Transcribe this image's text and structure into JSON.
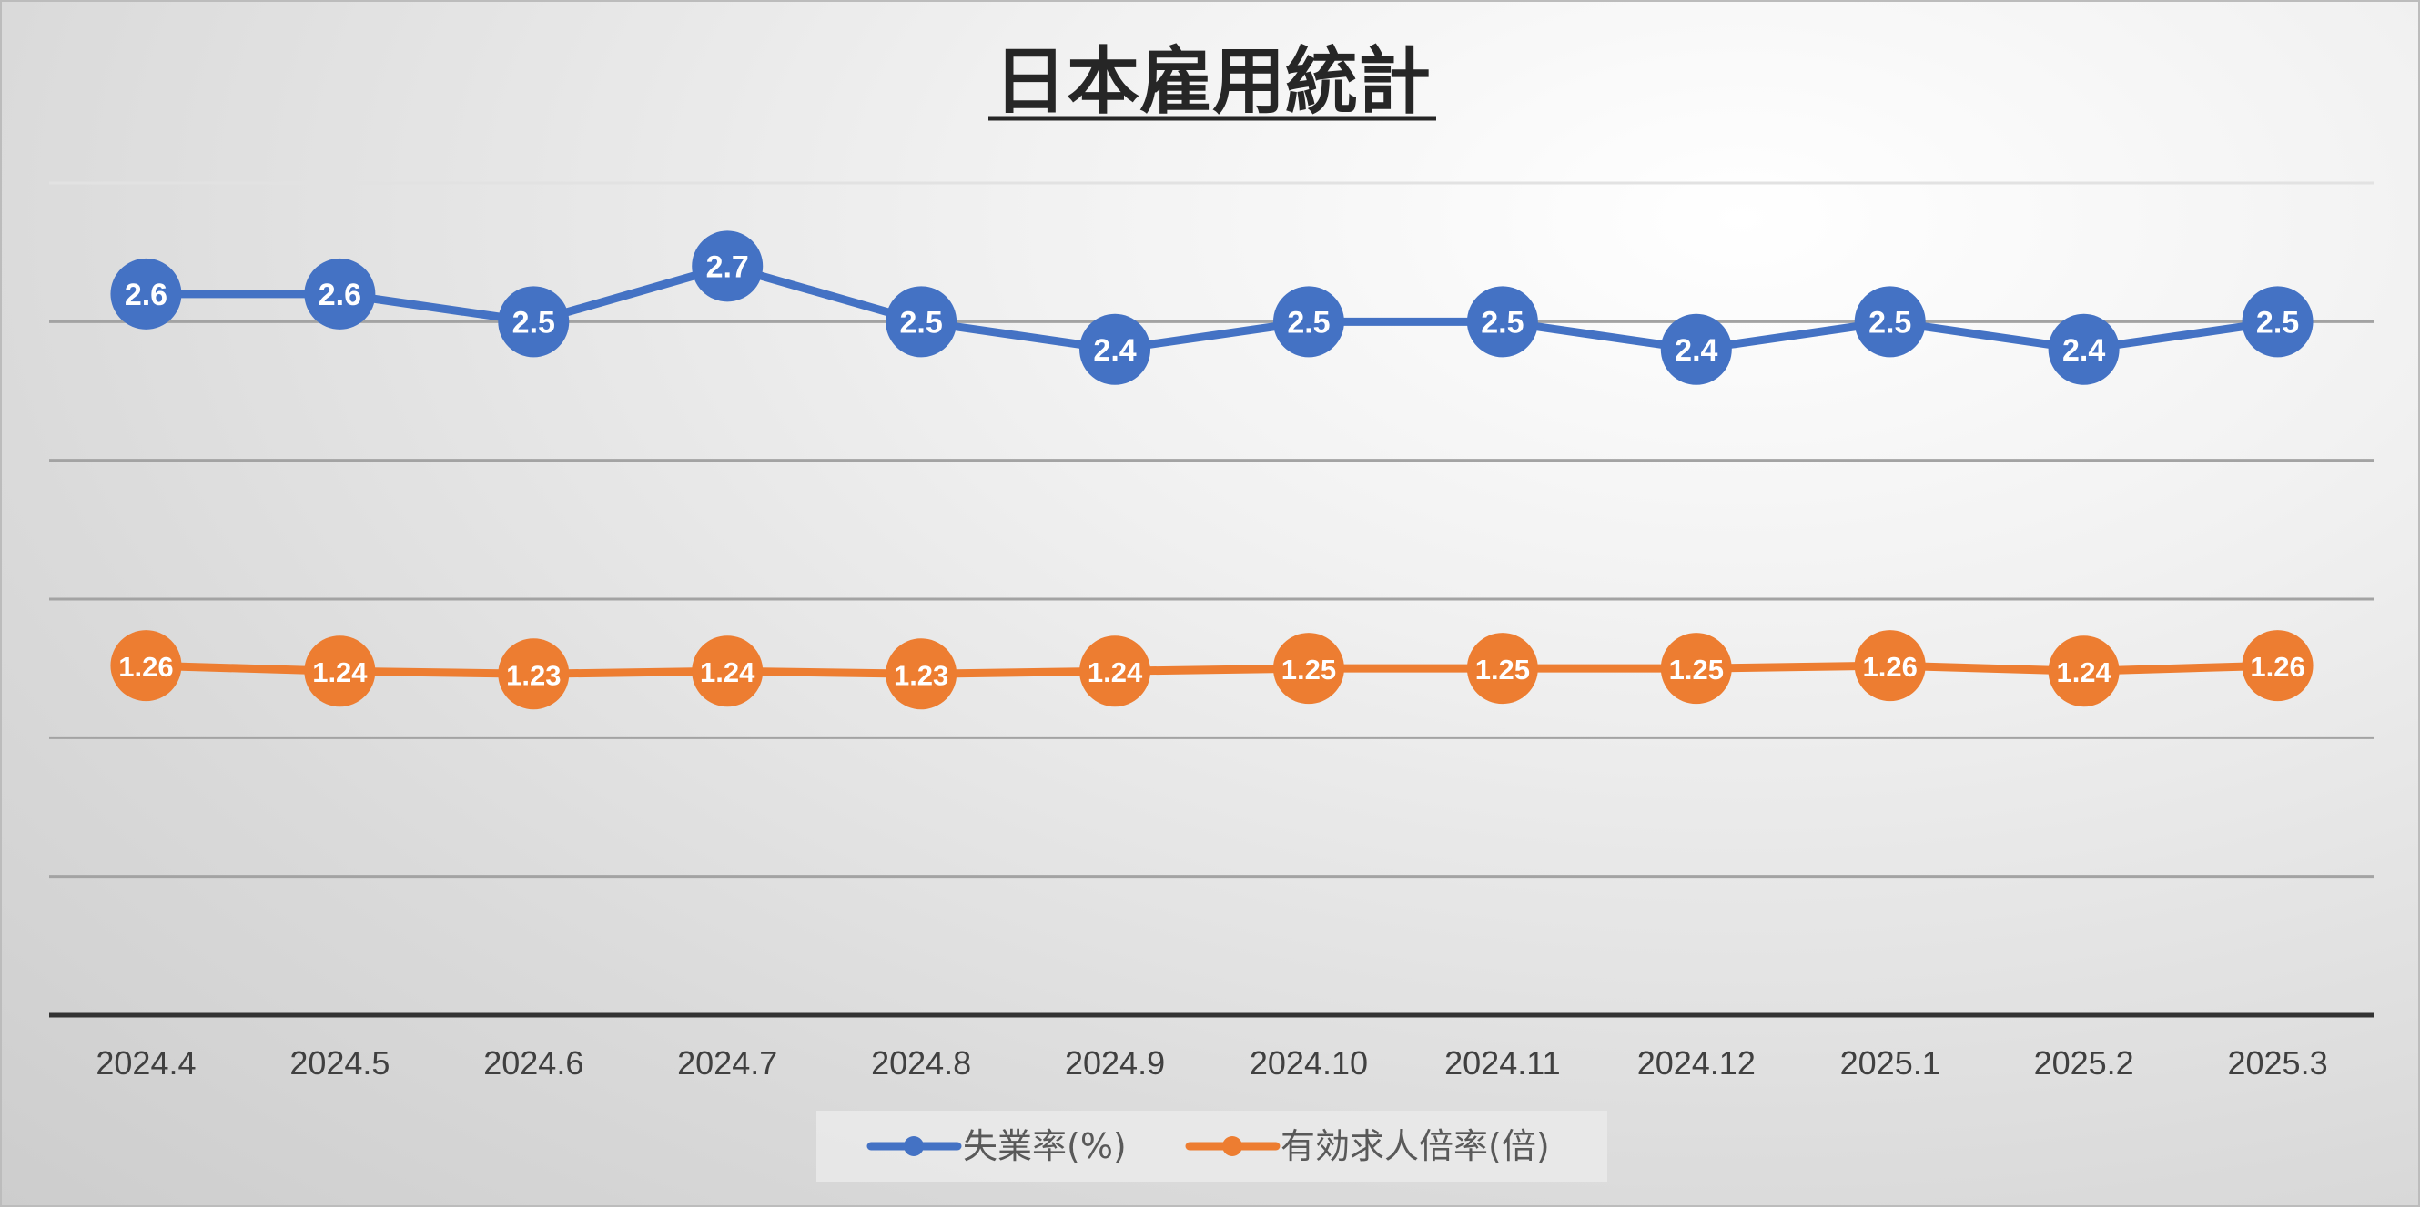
{
  "chart_data": {
    "type": "line",
    "title": "日本雇用統計",
    "categories": [
      "2024.4",
      "2024.5",
      "2024.6",
      "2024.7",
      "2024.8",
      "2024.9",
      "2024.10",
      "2024.11",
      "2024.12",
      "2025.1",
      "2025.2",
      "2025.3"
    ],
    "series": [
      {
        "name": "失業率(%)",
        "color": "#4472C4",
        "values": [
          2.6,
          2.6,
          2.5,
          2.7,
          2.5,
          2.4,
          2.5,
          2.5,
          2.4,
          2.5,
          2.4,
          2.5
        ],
        "labels": [
          "2.6",
          "2.6",
          "2.5",
          "2.7",
          "2.5",
          "2.4",
          "2.5",
          "2.5",
          "2.4",
          "2.5",
          "2.4",
          "2.5"
        ]
      },
      {
        "name": "有効求人倍率(倍)",
        "color": "#ED7D31",
        "values": [
          1.26,
          1.24,
          1.23,
          1.24,
          1.23,
          1.24,
          1.25,
          1.25,
          1.25,
          1.26,
          1.24,
          1.26
        ],
        "labels": [
          "1.26",
          "1.24",
          "1.23",
          "1.24",
          "1.23",
          "1.24",
          "1.25",
          "1.25",
          "1.25",
          "1.26",
          "1.24",
          "1.26"
        ]
      }
    ],
    "xlabel": "",
    "ylabel": "",
    "ylim": [
      0,
      3
    ],
    "y_gridlines": [
      0.5,
      1.0,
      1.5,
      2.0,
      2.5,
      3.0
    ],
    "y_tick_labels_visible": false,
    "grid": true,
    "legend": "bottom-center"
  }
}
